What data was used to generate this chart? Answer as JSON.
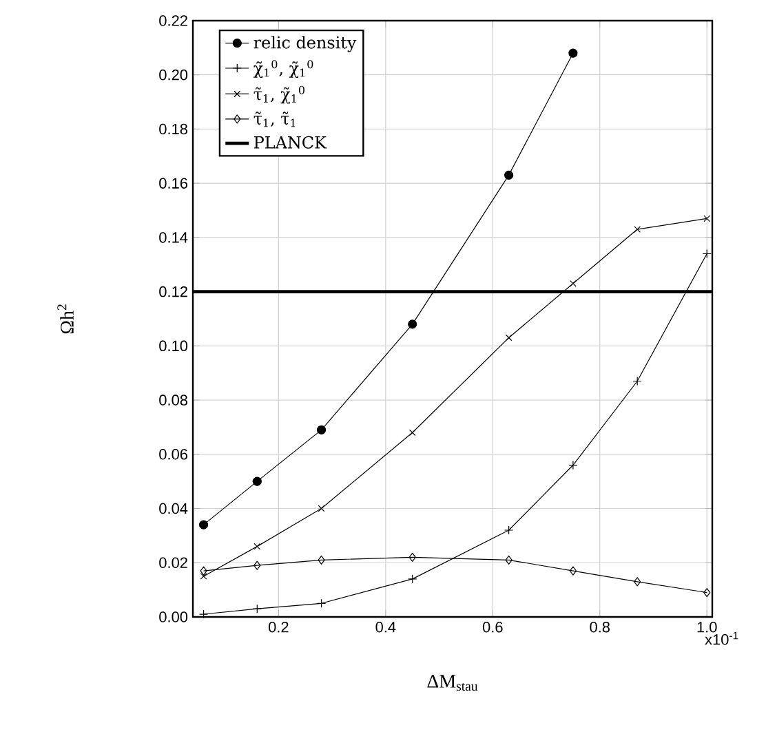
{
  "chart_data": {
    "type": "line",
    "xlabel": "ΔM$_{stau}$",
    "ylabel": "Ωh$^{2}$",
    "xlim": [
      0.04,
      1.01
    ],
    "ylim": [
      0,
      0.22
    ],
    "xticks": [
      0.2,
      0.4,
      0.6,
      0.8,
      {
        "value": 1.0,
        "label": "1.0"
      }
    ],
    "annotations": [
      "x10$^{-1}$"
    ],
    "yticks": [
      {
        "value": 0,
        "label": "0.00"
      },
      {
        "value": 0.02,
        "label": "0.02"
      },
      {
        "value": 0.04,
        "label": "0.04"
      },
      {
        "value": 0.06,
        "label": "0.06"
      },
      {
        "value": 0.08,
        "label": "0.08"
      },
      {
        "value": 0.1,
        "label": "0.10"
      },
      {
        "value": 0.12,
        "label": "0.12"
      },
      {
        "value": 0.14,
        "label": "0.14"
      },
      {
        "value": 0.16,
        "label": "0.16"
      },
      {
        "value": 0.18,
        "label": "0.18"
      },
      {
        "value": 0.2,
        "label": "0.20"
      },
      {
        "value": 0.22,
        "label": "0.22"
      }
    ],
    "grid": true,
    "legend": "top left",
    "series": [
      {
        "name": "relic density",
        "color": "#000000",
        "marker": "circle",
        "x": [
          0.06,
          0.16,
          0.28,
          0.45,
          0.63,
          0.75
        ],
        "values": [
          0.034,
          0.05,
          0.069,
          0.108,
          0.163,
          0.208
        ]
      },
      {
        "name": "χ̃$_{1}$$^{0}$, χ̃$_{1}$$^{0}$",
        "color": "#000000",
        "marker": "cross",
        "x": [
          0.06,
          0.16,
          0.28,
          0.45,
          0.63,
          0.75,
          0.87,
          1.0
        ],
        "values": [
          0.001,
          0.003,
          0.005,
          0.014,
          0.032,
          0.056,
          0.087,
          0.134
        ]
      },
      {
        "name": "τ̃$_{1}$, χ̃$_{1}$$^{0}$",
        "color": "#000000",
        "marker": "x",
        "x": [
          0.06,
          0.16,
          0.28,
          0.45,
          0.63,
          0.75,
          0.87,
          1.0
        ],
        "values": [
          0.015,
          0.026,
          0.04,
          0.068,
          0.103,
          0.123,
          0.143,
          0.147
        ]
      },
      {
        "name": "τ̃$_{1}$, τ̃$_{1}$",
        "color": "#000000",
        "marker": "diamond",
        "x": [
          0.06,
          0.16,
          0.28,
          0.45,
          0.63,
          0.75,
          0.87,
          1.0
        ],
        "values": [
          0.017,
          0.019,
          0.021,
          0.022,
          0.021,
          0.017,
          0.013,
          0.009
        ]
      }
    ],
    "ref_lines": [
      {
        "axis": "y",
        "value": 0.12,
        "label": "PLANCK",
        "color": "#000000"
      }
    ]
  }
}
